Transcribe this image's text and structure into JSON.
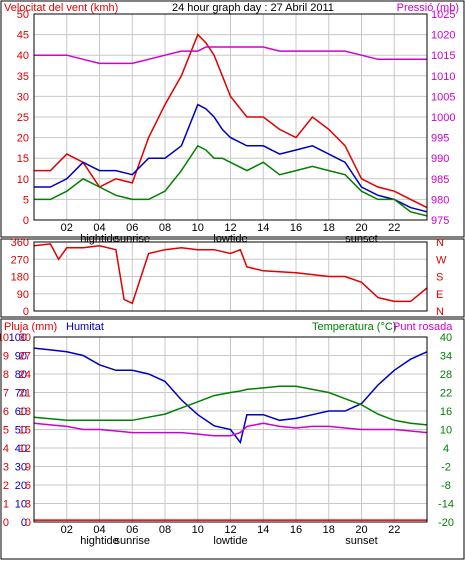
{
  "colors": {
    "red": "#e00000",
    "magenta": "#d000d0",
    "blue": "#0000c0",
    "green": "#008000",
    "dark": "#000000",
    "grid": "#c8c8c8"
  },
  "chart_data": [
    {
      "type": "line",
      "title": "24 hour graph day : 27 Abril 2011",
      "left_axis": {
        "label": "Velocitat del vent (kmh)",
        "ticks": [
          0,
          5,
          10,
          15,
          20,
          25,
          30,
          35,
          40,
          45,
          50
        ],
        "ylim": [
          0,
          50
        ]
      },
      "right_axis": {
        "label": "Pressió (mb)",
        "ticks": [
          975,
          980,
          985,
          990,
          995,
          1000,
          1005,
          1010,
          1015,
          1020,
          1025
        ],
        "ylim": [
          975,
          1025
        ]
      },
      "x_ticks": [
        "02",
        "04",
        "06",
        "08",
        "10",
        "12",
        "14",
        "16",
        "18",
        "20",
        "22"
      ],
      "events": [
        {
          "label": "hightide",
          "hour": 4
        },
        {
          "label": "sunrise",
          "hour": 6
        },
        {
          "label": "lowtide",
          "hour": 12
        },
        {
          "label": "sunset",
          "hour": 20
        }
      ],
      "x": [
        0,
        1,
        2,
        3,
        4,
        5,
        6,
        7,
        8,
        9,
        10,
        10.5,
        11,
        11.5,
        12,
        13,
        14,
        15,
        16,
        17,
        18,
        19,
        20,
        21,
        22,
        23,
        24
      ],
      "series": [
        {
          "color": "red",
          "values": [
            12,
            12,
            16,
            14,
            8,
            10,
            9,
            20,
            28,
            35,
            45,
            43,
            40,
            35,
            30,
            25,
            25,
            22,
            20,
            25,
            22,
            18,
            10,
            8,
            7,
            5,
            3
          ]
        },
        {
          "color": "blue",
          "values": [
            8,
            8,
            10,
            14,
            12,
            12,
            11,
            15,
            15,
            18,
            28,
            27,
            25,
            22,
            20,
            18,
            18,
            16,
            17,
            18,
            16,
            14,
            8,
            6,
            5,
            3,
            2
          ]
        },
        {
          "color": "green",
          "values": [
            5,
            5,
            7,
            10,
            8,
            6,
            5,
            5,
            7,
            12,
            18,
            17,
            15,
            15,
            14,
            12,
            14,
            11,
            12,
            13,
            12,
            11,
            7,
            5,
            5,
            2,
            1
          ]
        },
        {
          "color": "magenta",
          "axis": "right",
          "values": [
            1015,
            1015,
            1015,
            1014,
            1013,
            1013,
            1013,
            1014,
            1015,
            1016,
            1016,
            1017,
            1017,
            1017,
            1017,
            1017,
            1017,
            1016,
            1016,
            1016,
            1016,
            1016,
            1015,
            1014,
            1014,
            1014,
            1014
          ]
        }
      ]
    },
    {
      "type": "line",
      "left_axis": {
        "ticks": [
          0,
          90,
          180,
          270,
          360
        ],
        "ylim": [
          0,
          360
        ]
      },
      "right_axis": {
        "ticks": [
          "N",
          "W",
          "S",
          "E",
          "N"
        ]
      },
      "x": [
        0,
        1,
        1.5,
        2,
        3,
        4,
        5,
        5.5,
        6,
        7,
        8,
        9,
        10,
        11,
        12,
        12.6,
        13,
        14,
        15,
        16,
        17,
        18,
        19,
        20,
        21,
        22,
        23,
        24
      ],
      "series": [
        {
          "color": "red",
          "values": [
            340,
            350,
            270,
            330,
            330,
            340,
            320,
            60,
            40,
            300,
            320,
            330,
            320,
            320,
            300,
            320,
            230,
            210,
            205,
            200,
            190,
            180,
            180,
            150,
            70,
            50,
            50,
            120
          ]
        }
      ]
    },
    {
      "type": "line",
      "axes_labels": [
        "Pluja (mm)",
        "Humitat",
        "Temperatura (°C)",
        "Punt rosada"
      ],
      "far_left_axis": {
        "ticks": [
          0,
          1,
          2,
          3,
          4,
          5,
          6,
          7,
          8,
          9,
          10
        ]
      },
      "left_axis": {
        "ticks": [
          0,
          10,
          20,
          30,
          40,
          50,
          60,
          70,
          80,
          90,
          100
        ],
        "ylim": [
          0,
          100
        ]
      },
      "mid_axis": {
        "ticks": [
          0,
          3,
          6,
          9,
          12,
          15,
          18,
          21,
          24,
          27,
          30
        ]
      },
      "right_axis": {
        "ticks": [
          -20,
          -14,
          -8,
          -2,
          4,
          10,
          16,
          22,
          28,
          34,
          40
        ],
        "ylim": [
          -20,
          40
        ]
      },
      "x_ticks": [
        "02",
        "04",
        "06",
        "08",
        "10",
        "12",
        "14",
        "16",
        "18",
        "20",
        "22"
      ],
      "events": [
        {
          "label": "hightide",
          "hour": 4
        },
        {
          "label": "sunrise",
          "hour": 6
        },
        {
          "label": "lowtide",
          "hour": 12
        },
        {
          "label": "sunset",
          "hour": 20
        }
      ],
      "x": [
        0,
        1,
        2,
        3,
        4,
        5,
        6,
        7,
        8,
        9,
        10,
        11,
        12,
        12.6,
        13,
        14,
        15,
        16,
        17,
        18,
        19,
        20,
        21,
        22,
        23,
        24
      ],
      "series": [
        {
          "color": "blue",
          "axis": "left",
          "values": [
            94,
            93,
            92,
            90,
            85,
            82,
            82,
            80,
            76,
            66,
            58,
            52,
            50,
            43,
            58,
            58,
            55,
            56,
            58,
            60,
            60,
            64,
            74,
            82,
            88,
            92
          ]
        },
        {
          "color": "green",
          "axis": "right",
          "values": [
            14,
            13.5,
            13,
            13,
            13,
            13,
            13,
            14,
            15,
            17,
            19,
            21,
            22,
            22.5,
            23,
            23.5,
            24,
            24,
            23,
            22,
            20,
            18,
            15,
            13,
            12,
            11.5
          ]
        },
        {
          "color": "magenta",
          "axis": "right",
          "values": [
            12,
            11.5,
            11,
            10,
            10,
            9.5,
            9,
            9,
            9,
            9,
            8.5,
            8,
            8,
            9,
            11,
            12,
            11,
            10.5,
            11,
            11,
            10.5,
            10,
            10,
            10,
            9.5,
            9
          ]
        },
        {
          "color": "red",
          "axis": "left",
          "values": [
            1,
            1,
            1,
            1,
            1,
            1,
            1,
            1,
            1,
            1,
            1,
            1,
            1,
            1,
            1,
            1,
            1,
            1,
            1,
            1,
            1,
            1,
            1,
            1,
            1,
            1
          ]
        }
      ]
    }
  ]
}
